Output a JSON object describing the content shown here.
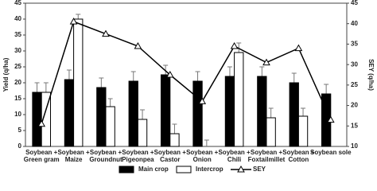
{
  "chart_data": {
    "type": "bar-line",
    "y_label": "Yield (q/ha)",
    "y2_label": "SEY (q/ha)",
    "categories": [
      [
        "Soybean +",
        "Green gram"
      ],
      [
        "Soybean +",
        "Maize"
      ],
      [
        "Soybean +",
        "Groundnut"
      ],
      [
        "Soybean +",
        "Pigeonpea"
      ],
      [
        "Soybean +",
        "Castor"
      ],
      [
        "Soybean +",
        "Onion"
      ],
      [
        "Soybean +",
        "Chili"
      ],
      [
        "Soybean +",
        "Foxtailmillet"
      ],
      [
        "Soybean +",
        "Cotton"
      ],
      [
        "Soybean sole"
      ]
    ],
    "series": [
      {
        "name": "Main crop",
        "kind": "bar",
        "color": "#000000",
        "values": [
          17,
          21,
          18.5,
          20.5,
          22.5,
          20.5,
          22,
          22,
          20,
          16.5
        ],
        "errors": [
          3,
          3,
          3,
          3,
          3,
          3,
          3,
          3,
          3,
          3
        ]
      },
      {
        "name": "Intercrop",
        "kind": "bar",
        "color": "#ffffff",
        "values": [
          17,
          40,
          12.5,
          8.5,
          4,
          0,
          29.5,
          9,
          9.5,
          null
        ],
        "errors": [
          3,
          1.5,
          2.5,
          3,
          3,
          2,
          3,
          3,
          2.5,
          null
        ]
      },
      {
        "name": "SEY",
        "kind": "line",
        "axis": "y2",
        "color": "#000000",
        "values": [
          15.5,
          40.5,
          37.5,
          34.5,
          27.5,
          21,
          34.5,
          30.5,
          34,
          16.5
        ]
      }
    ],
    "ylim": [
      0,
      45
    ],
    "yticks": [
      0,
      5,
      10,
      15,
      20,
      25,
      30,
      35,
      40,
      45
    ],
    "y2lim": [
      10,
      45
    ],
    "y2ticks": [
      10,
      15,
      20,
      25,
      30,
      35,
      40,
      45
    ]
  }
}
